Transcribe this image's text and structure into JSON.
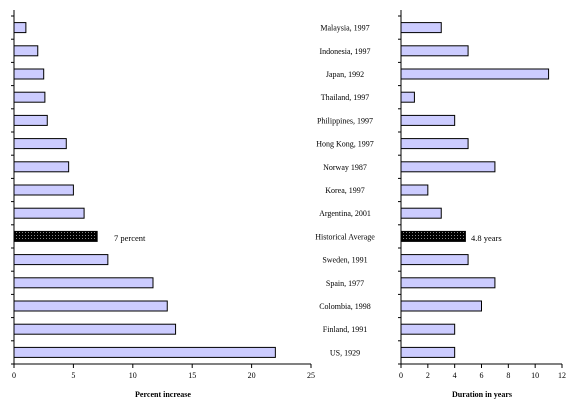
{
  "colors": {
    "bar_fill": "#ccccff",
    "highlight_pattern": "dark-dotted",
    "axis": "#000000"
  },
  "chart_data": [
    {
      "type": "bar",
      "orientation": "horizontal",
      "categories": [
        "Malaysia, 1997",
        "Indonesia, 1997",
        "Japan, 1992",
        "Thailand, 1997",
        "Philippines, 1997",
        "Hong Kong, 1997",
        "Norway 1987",
        "Korea, 1997",
        "Argentina, 2001",
        "Historical Average",
        "Sweden, 1991",
        "Spain, 1977",
        "Colombia, 1998",
        "Finland, 1991",
        "US, 1929"
      ],
      "values": [
        1.0,
        2.0,
        2.5,
        2.6,
        2.8,
        4.4,
        4.6,
        5.0,
        5.9,
        7.0,
        7.9,
        11.7,
        12.9,
        13.6,
        22.0
      ],
      "highlight": "Historical Average",
      "annotation": "7 percent",
      "xlabel": "Percent increase",
      "xlim": [
        0,
        25
      ],
      "xticks": [
        "0",
        "5",
        "10",
        "15",
        "20",
        "25"
      ]
    },
    {
      "type": "bar",
      "orientation": "horizontal",
      "categories": [
        "Malaysia, 1997",
        "Indonesia, 1997",
        "Japan, 1992",
        "Thailand, 1997",
        "Philippines, 1997",
        "Hong Kong, 1997",
        "Norway 1987",
        "Korea, 1997",
        "Argentina, 2001",
        "Historical Average",
        "Sweden, 1991",
        "Spain, 1977",
        "Colombia, 1998",
        "Finland, 1991",
        "US, 1929"
      ],
      "values": [
        3.0,
        5.0,
        11.0,
        1.0,
        4.0,
        5.0,
        7.0,
        2.0,
        3.0,
        4.8,
        5.0,
        7.0,
        6.0,
        4.0,
        4.0
      ],
      "highlight": "Historical Average",
      "annotation": "4.8 years",
      "xlabel": "Duration in years",
      "xlim": [
        0,
        12
      ],
      "xticks": [
        "0",
        "2",
        "4",
        "6",
        "8",
        "10",
        "12"
      ]
    }
  ]
}
